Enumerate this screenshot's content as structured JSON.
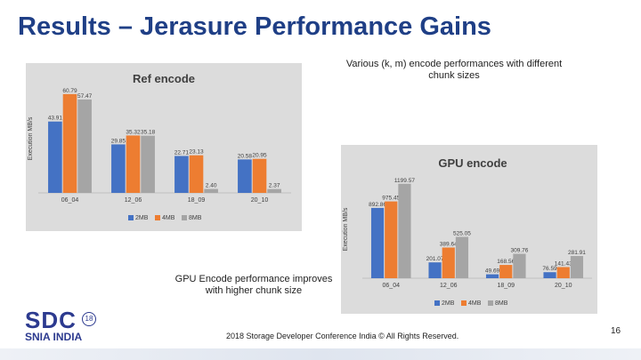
{
  "slide": {
    "title": "Results – Jerasure Performance Gains",
    "caption_top": "Various (k, m) encode performances with different chunk sizes",
    "caption_bottom": "GPU Encode performance improves with higher chunk size",
    "footer": "2018 Storage Developer Conference India ©  All Rights Reserved.",
    "page_number": "16",
    "logo": {
      "main": "SDC",
      "year": "18",
      "sub": "SNIA INDIA"
    }
  },
  "colors": {
    "title": "#1f3f86",
    "s2MB": "#4472c4",
    "s4MB": "#ed7d31",
    "s8MB": "#a5a5a5",
    "plot_bg": "#dcdcdc"
  },
  "chart_data": [
    {
      "id": "ref",
      "type": "bar",
      "title": "Ref encode",
      "ylabel": "Execution MB/s",
      "xlabel": "",
      "categories": [
        "06_04",
        "12_06",
        "18_09",
        "20_10"
      ],
      "series": [
        {
          "name": "2MB",
          "values": [
            43.91,
            29.85,
            22.71,
            20.58
          ],
          "labels": [
            "43.91",
            "29.85",
            "22.71",
            "20.58"
          ]
        },
        {
          "name": "4MB",
          "values": [
            60.79,
            35.32,
            23.13,
            20.95
          ],
          "labels": [
            "60.79",
            "35.32",
            "23.13",
            "20.95"
          ]
        },
        {
          "name": "8MB",
          "values": [
            57.47,
            35.18,
            2.4,
            2.37
          ],
          "labels": [
            "57.47",
            "35.18",
            "2.40",
            "2.37"
          ]
        }
      ],
      "ylim": [
        0,
        70
      ],
      "legend": "bottom"
    },
    {
      "id": "gpu",
      "type": "bar",
      "title": "GPU encode",
      "ylabel": "Execution MB/s",
      "xlabel": "",
      "categories": [
        "06_04",
        "12_06",
        "18_09",
        "20_10"
      ],
      "series": [
        {
          "name": "2MB",
          "values": [
            892.86,
            201.07,
            49.69,
            76.59
          ],
          "labels": [
            "892.86",
            "201.07",
            "49.69",
            "76.59"
          ]
        },
        {
          "name": "4MB",
          "values": [
            975.45,
            389.64,
            168.56,
            141.43
          ],
          "labels": [
            "975.45",
            "389.64",
            "168.56",
            "141.43"
          ]
        },
        {
          "name": "8MB",
          "values": [
            1199.57,
            525.05,
            309.76,
            281.91
          ],
          "labels": [
            "1199.57",
            "525.05",
            "309.76",
            "281.91"
          ]
        }
      ],
      "ylim": [
        0,
        1400
      ],
      "legend": "bottom"
    }
  ]
}
